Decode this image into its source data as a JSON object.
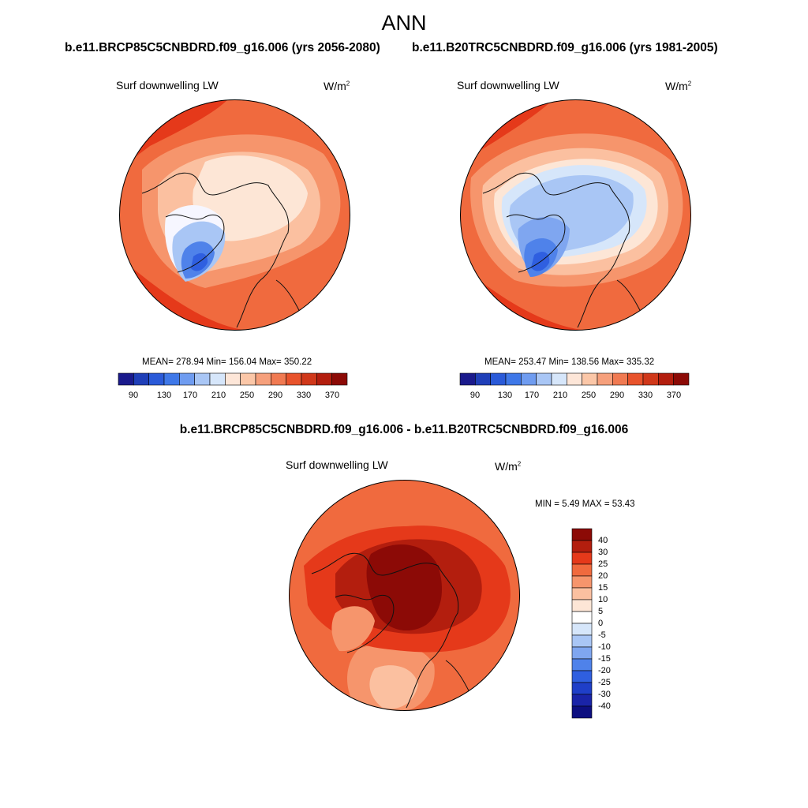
{
  "page": {
    "title": "ANN",
    "case1_title": "b.e11.BRCP85C5CNBDRD.f09_g16.006 (yrs 2056-2080)",
    "case2_title": "b.e11.B20TRC5CNBDRD.f09_g16.006 (yrs 1981-2005)",
    "diff_title": "b.e11.BRCP85C5CNBDRD.f09_g16.006 - b.e11.B20TRC5CNBDRD.f09_g16.006"
  },
  "panels": [
    {
      "variable": "Surf downwelling LW",
      "units_base": "W/m",
      "units_exp": "2",
      "stats": "MEAN= 278.94  Min= 156.04  Max= 350.22",
      "mean": 278.94,
      "min": 156.04,
      "max": 350.22
    },
    {
      "variable": "Surf downwelling LW",
      "units_base": "W/m",
      "units_exp": "2",
      "stats": "MEAN= 253.47  Min= 138.56  Max= 335.32",
      "mean": 253.47,
      "min": 138.56,
      "max": 335.32
    },
    {
      "variable": "Surf downwelling LW",
      "units_base": "W/m",
      "units_exp": "2",
      "stats": "MIN =   5.49 MAX =  53.43",
      "min": 5.49,
      "max": 53.43
    }
  ],
  "colorbar_abs": {
    "colors": [
      "#1a1a8c",
      "#1f3fb8",
      "#2a5ad8",
      "#3f78e8",
      "#6f9cf0",
      "#a9c6f5",
      "#d6e6fa",
      "#fde6d8",
      "#fbc7a8",
      "#f6a07c",
      "#f07a52",
      "#e8532c",
      "#d0381a",
      "#b31e0e",
      "#8c0a06"
    ],
    "tick_labels": [
      "90",
      "130",
      "170",
      "210",
      "250",
      "290",
      "330",
      "370"
    ]
  },
  "colorbar_diff": {
    "colors_top_to_bottom": [
      "#8c0a06",
      "#b31e0e",
      "#e5391a",
      "#f06a3e",
      "#f6956c",
      "#fbc0a0",
      "#fde6d6",
      "#ffffff",
      "#d6e6fa",
      "#a9c6f5",
      "#7fa6f0",
      "#4f82ea",
      "#2f5fe0",
      "#1f3fc8",
      "#1a24a8",
      "#0d0f80"
    ],
    "tick_labels": [
      "40",
      "30",
      "25",
      "20",
      "15",
      "10",
      "5",
      "0",
      "-5",
      "-10",
      "-15",
      "-20",
      "-25",
      "-30",
      "-40"
    ]
  },
  "map_colors": {
    "deep_red": "#8c0a06",
    "dark_red": "#b31e0e",
    "red": "#e5391a",
    "orange_red": "#f06a3e",
    "salmon": "#f6956c",
    "light_salmon": "#fbc0a0",
    "cream": "#fde6d6",
    "pale_blue": "#d6e6fa",
    "light_blue": "#a9c6f5",
    "mid_blue": "#7fa6f0",
    "blue": "#4f82ea",
    "strong_blue": "#2f5fe0"
  }
}
